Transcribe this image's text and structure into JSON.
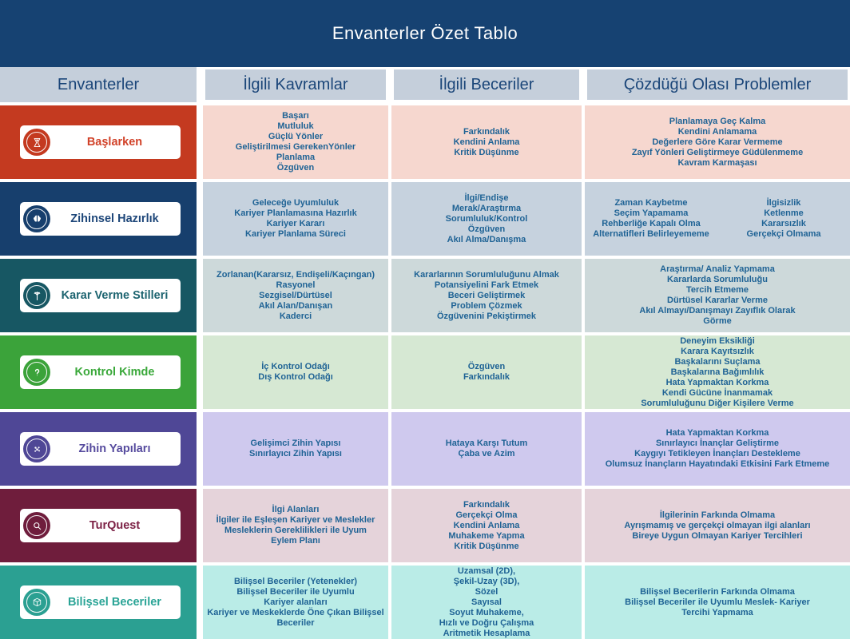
{
  "title": "Envanterler Özet Tablo",
  "columns": [
    "Envanterler",
    "İlgili Kavramlar",
    "İlgili Beceriler",
    "Çözdüğü Olası Problemler"
  ],
  "theme": {
    "title_bg": "#164272",
    "title_text": "#ffffff",
    "header_bg": "#c5cfdb",
    "header_text": "#1b4679",
    "body_text": "#1f6395",
    "page_bg": "#ffffff"
  },
  "rows": [
    {
      "label": "Başlarken",
      "icon": "hourglass-icon",
      "colors": {
        "panel": "#c43a20",
        "cell": "#f6d7cf",
        "text": "#d14128"
      },
      "kavramlar": [
        "Başarı",
        "Mutluluk",
        "Güçlü Yönler",
        "Geliştirilmesi GerekenYönler",
        "Planlama",
        "Özgüven"
      ],
      "beceriler": [
        "Farkındalık",
        "Kendini Anlama",
        "Kritik Düşünme"
      ],
      "problemler": [
        "Planlamaya Geç Kalma",
        "Kendini Anlamama",
        "Değerlere Göre Karar Vermeme",
        "Zayıf Yönleri Geliştirmeye Güdülenmeme",
        "Kavram Karmaşası"
      ]
    },
    {
      "label": "Zihinsel Hazırlık",
      "icon": "brain-icon",
      "colors": {
        "panel": "#173f6d",
        "cell": "#c6d2de",
        "text": "#1d4679"
      },
      "kavramlar": [
        "Geleceğe Uyumluluk",
        "Kariyer Planlamasına Hazırlık",
        "Kariyer Kararı",
        "Kariyer Planlama Süreci"
      ],
      "beceriler": [
        "İlgi/Endişe",
        "Merak/Araştırma",
        "Sorumluluk/Kontrol",
        "Özgüven",
        "Akıl Alma/Danışma"
      ],
      "problemler": {
        "columns": [
          [
            "Zaman Kaybetme",
            "Seçim Yapamama",
            "Rehberliğe Kapalı Olma",
            "Alternatifleri Belirleyememe"
          ],
          [
            "İlgisizlik",
            "Ketlenme",
            "Kararsızlık",
            "Gerçekçi Olmama"
          ]
        ]
      }
    },
    {
      "label": "Karar Verme Stilleri",
      "icon": "split-path-icon",
      "colors": {
        "panel": "#175763",
        "cell": "#cdd9da",
        "text": "#1d6470"
      },
      "kavramlar": [
        "Zorlanan(Kararsız, Endişeli/Kaçıngan)",
        "Rasyonel",
        "Sezgisel/Dürtüsel",
        "Akıl Alan/Danışan",
        "Kaderci"
      ],
      "beceriler": [
        "Kararlarının Sorumluluğunu Almak",
        "Potansiyelini Fark Etmek",
        "Beceri Geliştirmek",
        "Problem Çözmek",
        "Özgüvenini Pekiştirmek"
      ],
      "problemler": [
        "Araştırma/ Analiz Yapmama",
        "Kararlarda Sorumluluğu",
        "Tercih Etmeme",
        "Dürtüsel Kararlar Verme",
        "Akıl Almayı/Danışmayı Zayıflık Olarak",
        "Görme"
      ]
    },
    {
      "label": "Kontrol Kimde",
      "icon": "question-mark-icon",
      "colors": {
        "panel": "#3ba33a",
        "cell": "#d6e8d3",
        "text": "#3aa83a"
      },
      "kavramlar": [
        "İç Kontrol Odağı",
        "Dış Kontrol Odağı"
      ],
      "beceriler": [
        "Özgüven",
        "Farkındalık"
      ],
      "problemler": [
        "Deneyim Eksikliği",
        "Karara Kayıtsızlık",
        "Başkalarını Suçlama",
        "Başkalarına Bağımlılık",
        "Hata Yapmaktan Korkma",
        "Kendi Gücüne İnanmamak",
        "Sorumluluğunu Diğer Kişilere Verme"
      ]
    },
    {
      "label": "Zihin Yapıları",
      "icon": "network-icon",
      "colors": {
        "panel": "#4f4796",
        "cell": "#cfc9ee",
        "text": "#564b9e"
      },
      "kavramlar": [
        "Gelişimci Zihin Yapısı",
        "Sınırlayıcı Zihin Yapısı"
      ],
      "beceriler": [
        "Hataya Karşı Tutum",
        "Çaba ve Azim"
      ],
      "problemler": [
        "Hata Yapmaktan Korkma",
        "Sınırlayıcı İnançlar Geliştirme",
        "Kaygıyı Tetikleyen İnançları Destekleme",
        "Olumsuz İnançların Hayatındaki Etkisini Fark Etmeme"
      ]
    },
    {
      "label": "TurQuest",
      "icon": "magnifier-icon",
      "colors": {
        "panel": "#6f1d3c",
        "cell": "#e5d3da",
        "text": "#7c2145"
      },
      "kavramlar": [
        "İlgi Alanları",
        "İlgiler ile Eşleşen Kariyer ve Meslekler",
        "Mesleklerin Gereklilikleri ile Uyum",
        "Eylem Planı"
      ],
      "beceriler": [
        "Farkındalık",
        "Gerçekçi Olma",
        "Kendini Anlama",
        "Muhakeme Yapma",
        "Kritik Düşünme"
      ],
      "problemler": [
        "İlgilerinin Farkında Olmama",
        "Ayrışmamış ve gerçekçi olmayan ilgi alanları",
        "Bireye Uygun Olmayan Kariyer Tercihleri"
      ]
    },
    {
      "label": "Bilişsel Beceriler",
      "icon": "cube-icon",
      "colors": {
        "panel": "#2ba092",
        "cell": "#baece7",
        "text": "#2aa496"
      },
      "kavramlar": [
        "Bilişsel Beceriler (Yetenekler)",
        "Bilişsel Beceriler ile Uyumlu",
        "Kariyer alanları",
        "Kariyer ve Meskeklerde Öne Çıkan Bilişsel",
        "Beceriler"
      ],
      "beceriler": [
        "Uzamsal (2D),",
        "Şekil-Uzay (3D),",
        "Sözel",
        "Sayısal",
        "Soyut Muhakeme,",
        "Hızlı ve Doğru Çalışma",
        "Aritmetik Hesaplama"
      ],
      "problemler": [
        "Bilişsel Becerilerin Farkında Olmama",
        "Bilişsel Beceriler ile Uyumlu Meslek- Kariyer",
        "Tercihi Yapmama"
      ]
    }
  ]
}
